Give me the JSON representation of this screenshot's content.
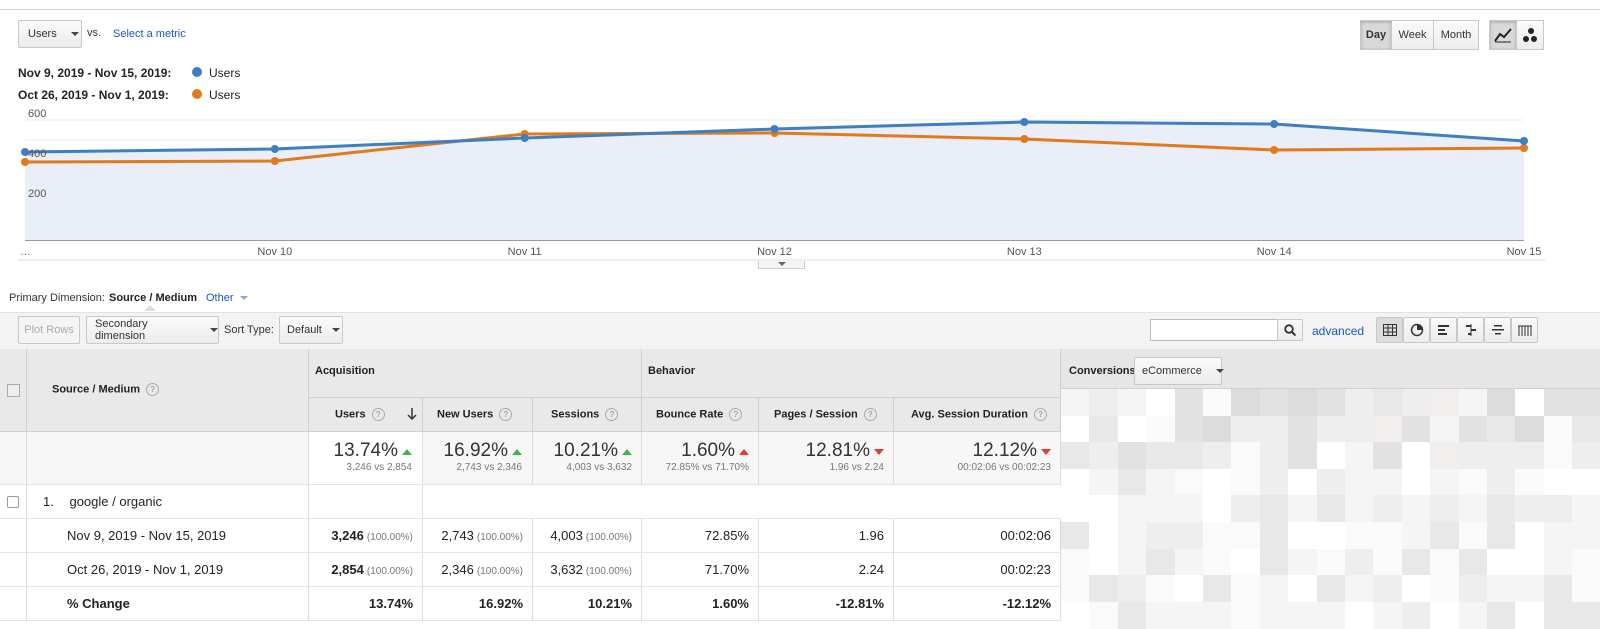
{
  "toolbar": {
    "metric_select": "Users",
    "vs_label": "vs.",
    "select_metric_link": "Select a metric",
    "granularity": [
      "Day",
      "Week",
      "Month"
    ],
    "active_granularity": "Day",
    "chart_type_icons": [
      "line-chart-icon",
      "motion-chart-icon"
    ]
  },
  "legend": [
    {
      "range": "Nov 9, 2019 - Nov 15, 2019:",
      "series": "Users",
      "color": "#3d7fc1"
    },
    {
      "range": "Oct 26, 2019 - Nov 1, 2019:",
      "series": "Users",
      "color": "#e07a1c"
    }
  ],
  "chart_data": {
    "type": "line",
    "x": [
      "…",
      "Nov 10",
      "Nov 11",
      "Nov 12",
      "Nov 13",
      "Nov 14",
      "Nov 15"
    ],
    "y_ticks": [
      "600",
      "400",
      "200"
    ],
    "ylim": [
      0,
      650
    ],
    "series": [
      {
        "name": "Users",
        "color": "#3d7fc1",
        "values": [
          440,
          455,
          510,
          555,
          590,
          580,
          495
        ]
      },
      {
        "name": "Users",
        "color": "#e07a1c",
        "values": [
          390,
          395,
          530,
          535,
          505,
          450,
          460
        ]
      }
    ]
  },
  "dimension_bar": {
    "label": "Primary Dimension:",
    "active": "Source / Medium",
    "other": "Other"
  },
  "controls": {
    "plot_rows": "Plot Rows",
    "secondary_dimension": "Secondary dimension",
    "sort_type_label": "Sort Type:",
    "sort_type_value": "Default",
    "search_placeholder": "",
    "advanced": "advanced",
    "view_icons": [
      "grid-view-icon",
      "pie-view-icon",
      "performance-view-icon",
      "comparison-view-icon",
      "term-cloud-icon",
      "pivot-view-icon"
    ]
  },
  "table": {
    "dimension_header": "Source / Medium",
    "groups": {
      "acquisition": "Acquisition",
      "behavior": "Behavior",
      "conversions": "Conversions",
      "conversions_select": "eCommerce"
    },
    "columns": [
      "Users",
      "New Users",
      "Sessions",
      "Bounce Rate",
      "Pages / Session",
      "Avg. Session Duration"
    ],
    "summary": [
      {
        "value": "13.74%",
        "trend": "up-good",
        "detail": "3,246 vs 2,854"
      },
      {
        "value": "16.92%",
        "trend": "up-good",
        "detail": "2,743 vs 2,346"
      },
      {
        "value": "10.21%",
        "trend": "up-good",
        "detail": "4,003 vs 3,632"
      },
      {
        "value": "1.60%",
        "trend": "up-bad",
        "detail": "72.85% vs 71.70%"
      },
      {
        "value": "12.81%",
        "trend": "down-bad",
        "detail": "1.96 vs 2.24"
      },
      {
        "value": "12.12%",
        "trend": "down-bad",
        "detail": "00:02:06 vs 00:02:23"
      }
    ],
    "row": {
      "index": "1.",
      "name": "google / organic"
    },
    "subrows": [
      {
        "label": "Nov 9, 2019 - Nov 15, 2019",
        "users": "3,246",
        "users_pct": "(100.00%)",
        "new_users": "2,743",
        "new_users_pct": "(100.00%)",
        "sessions": "4,003",
        "sessions_pct": "(100.00%)",
        "bounce": "72.85%",
        "pages": "1.96",
        "duration": "00:02:06"
      },
      {
        "label": "Oct 26, 2019 - Nov 1, 2019",
        "users": "2,854",
        "users_pct": "(100.00%)",
        "new_users": "2,346",
        "new_users_pct": "(100.00%)",
        "sessions": "3,632",
        "sessions_pct": "(100.00%)",
        "bounce": "71.70%",
        "pages": "2.24",
        "duration": "00:02:23"
      },
      {
        "label": "% Change",
        "users": "13.74%",
        "new_users": "16.92%",
        "sessions": "10.21%",
        "bounce": "1.60%",
        "pages": "-12.81%",
        "duration": "-12.12%"
      }
    ]
  }
}
